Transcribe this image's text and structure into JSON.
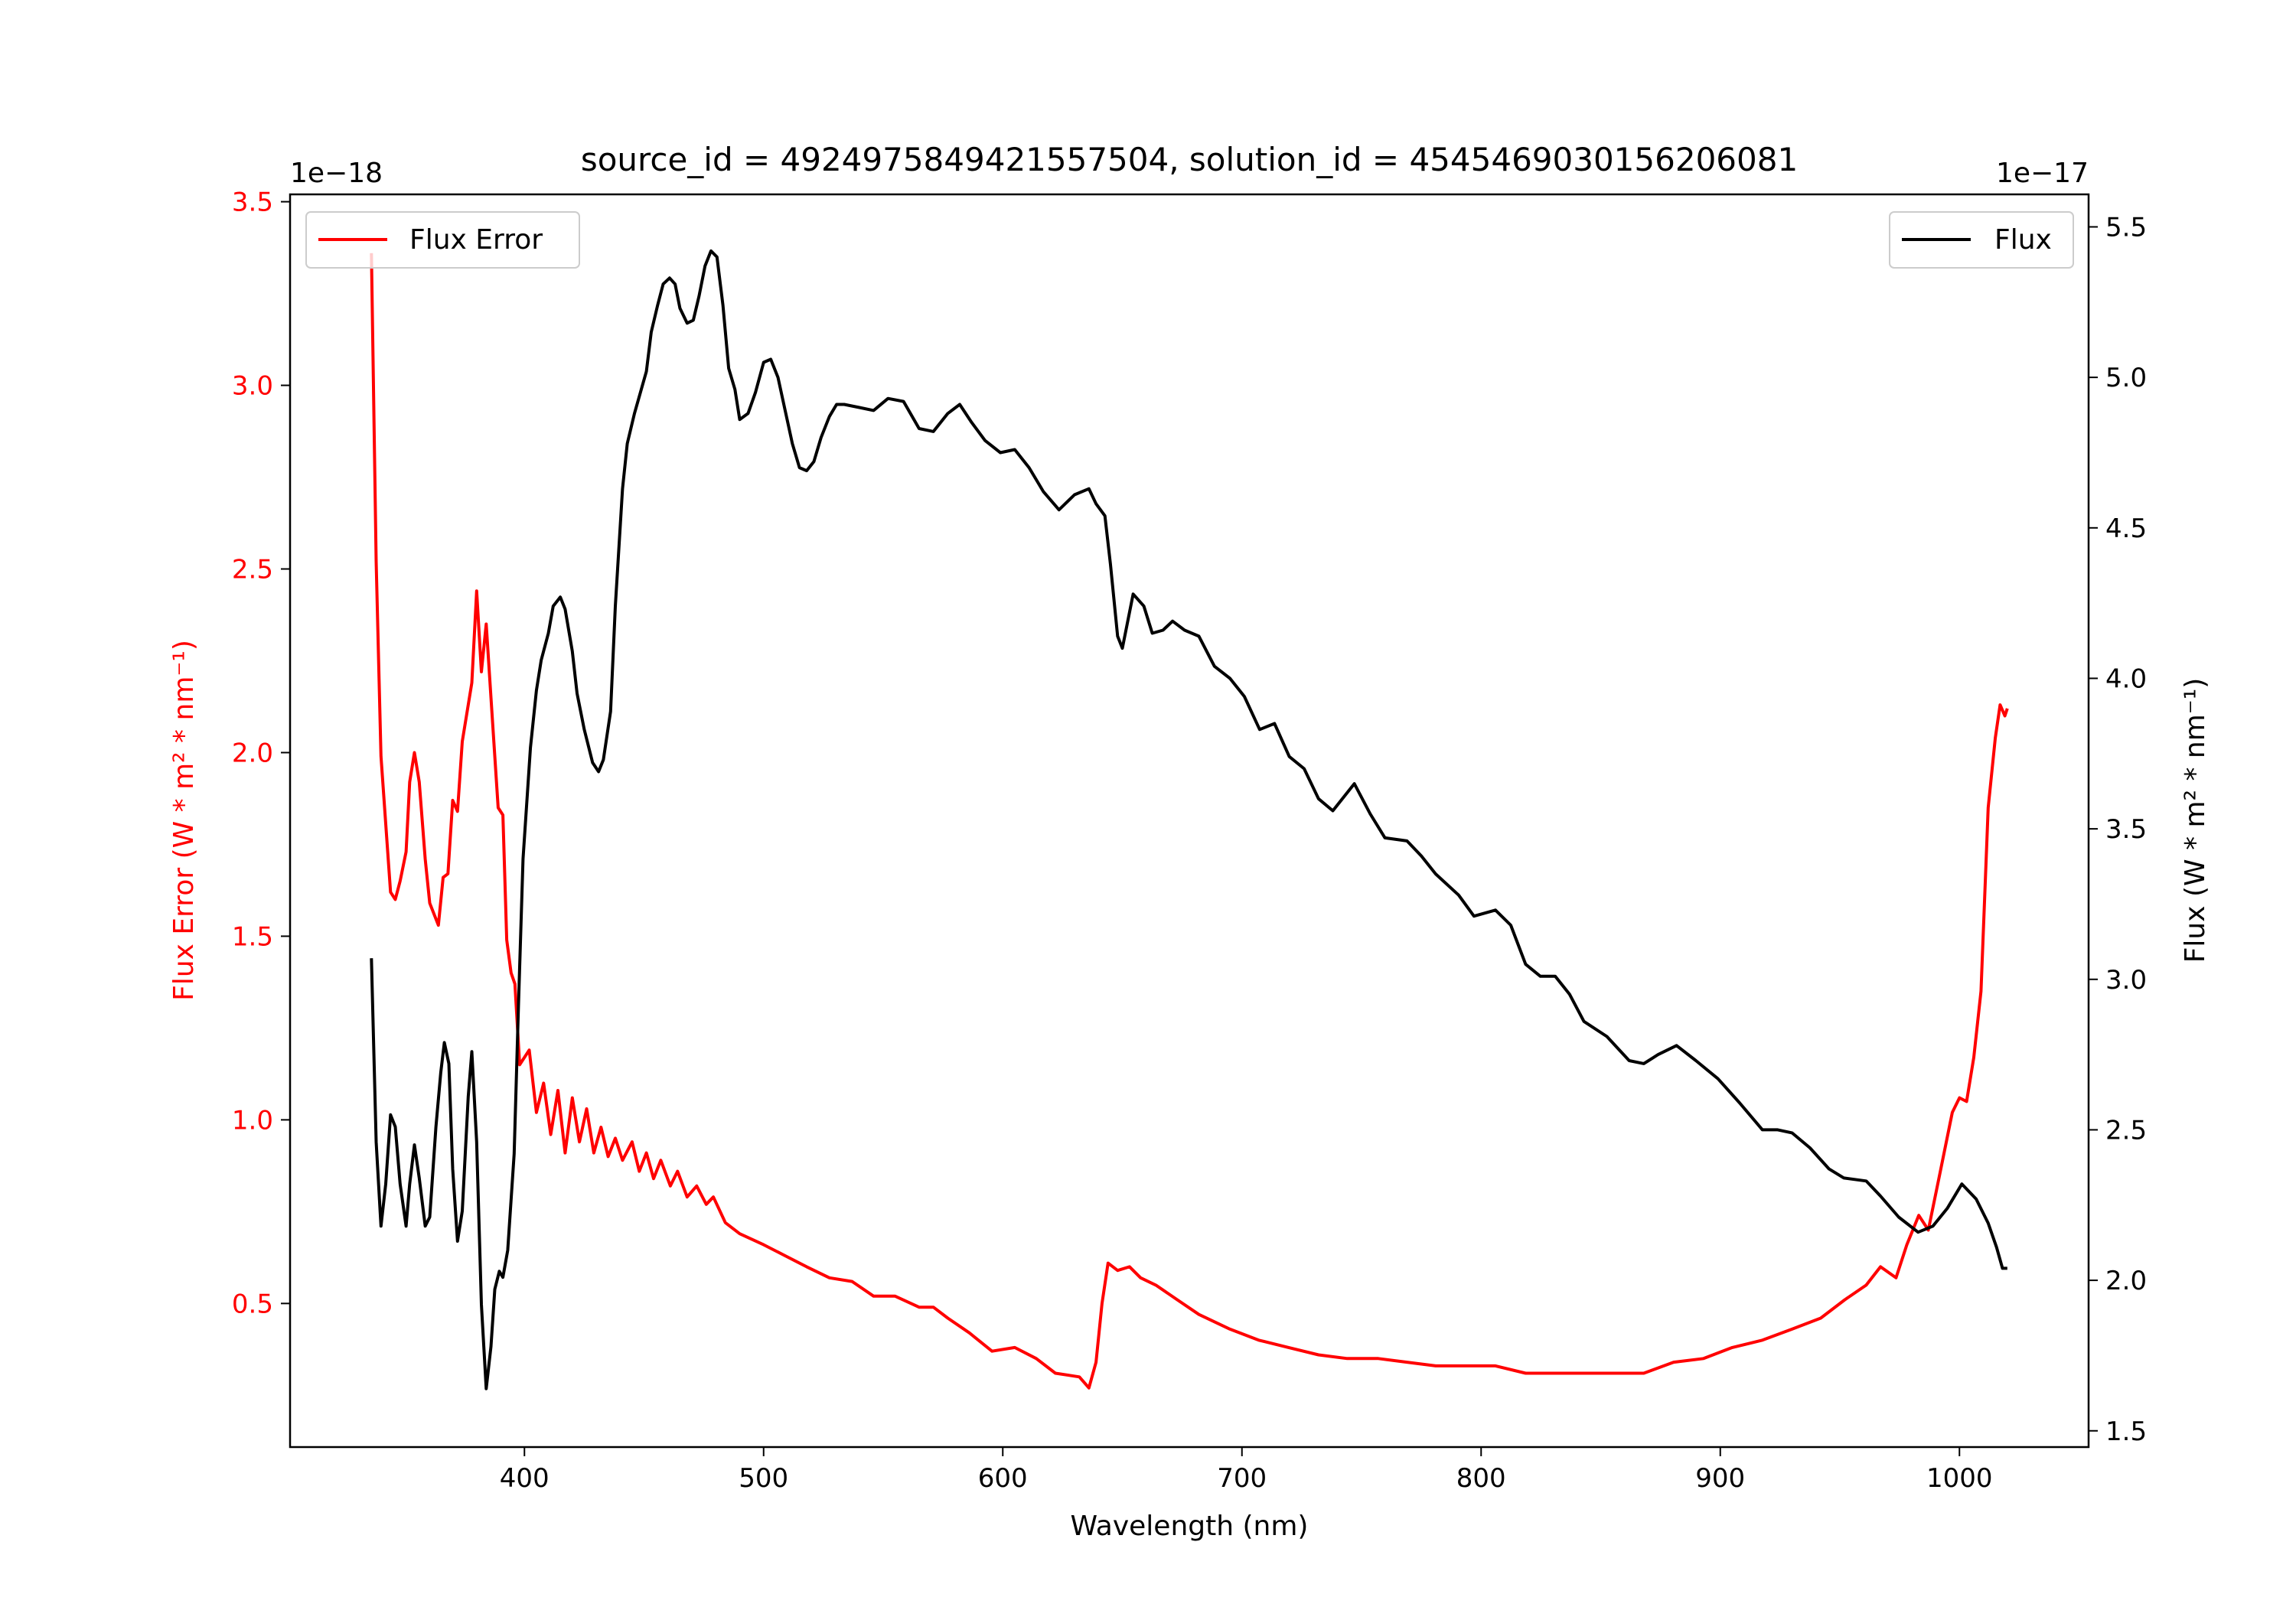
{
  "chart_data": {
    "type": "line",
    "title": "source_id = 4924975849421557504, solution_id = 4545469030156206081",
    "xlabel": "Wavelength (nm)",
    "ylabel_left": "Flux Error (W * m² * nm⁻¹)",
    "ylabel_right": "Flux (W * m² * nm⁻¹)",
    "offset_left": "1e−18",
    "offset_right": "1e−17",
    "xlim": [
      302,
      1054
    ],
    "ylim_left": [
      0.109,
      3.52
    ],
    "ylim_right": [
      1.446,
      5.608
    ],
    "xticks": [
      400,
      500,
      600,
      700,
      800,
      900,
      1000
    ],
    "xtick_labels": [
      "400",
      "500",
      "600",
      "700",
      "800",
      "900",
      "1000"
    ],
    "yticks_left": [
      0.5,
      1.0,
      1.5,
      2.0,
      2.5,
      3.0,
      3.5
    ],
    "ytick_labels_left": [
      "0.5",
      "1.0",
      "1.5",
      "2.0",
      "2.5",
      "3.0",
      "3.5"
    ],
    "yticks_right": [
      1.5,
      2.0,
      2.5,
      3.0,
      3.5,
      4.0,
      4.5,
      5.0,
      5.5
    ],
    "ytick_labels_right": [
      "1.5",
      "2.0",
      "2.5",
      "3.0",
      "3.5",
      "4.0",
      "4.5",
      "5.0",
      "5.5"
    ],
    "grid": false,
    "colors": {
      "flux_error": "#ff0000",
      "flux": "#000000",
      "left_axis_text": "#ff0000"
    },
    "series": [
      {
        "name": "Flux Error",
        "axis": "left",
        "legend_position": "upper-left",
        "x": [
          336,
          338,
          340,
          342.6,
          344,
          346,
          348,
          350.5,
          352,
          354,
          356,
          358.5,
          360.4,
          364,
          366,
          368,
          370,
          372,
          374,
          378,
          380,
          382,
          384,
          386,
          389,
          391,
          392.6,
          394.4,
          396,
          398,
          402,
          405,
          408,
          411,
          414,
          417,
          420,
          423,
          426,
          429,
          432,
          435,
          438,
          441,
          445,
          448,
          451,
          454,
          457,
          461,
          464,
          468,
          472,
          476,
          479,
          484,
          490,
          500,
          509,
          518,
          527.5,
          537,
          546,
          555,
          565,
          571,
          577,
          586,
          595.5,
          605,
          614,
          622,
          632,
          636,
          639,
          641.5,
          644,
          648,
          653,
          657.6,
          664,
          673,
          682,
          695,
          707,
          719.5,
          732,
          744,
          757,
          769,
          781,
          794,
          806,
          818.6,
          831,
          843,
          856,
          868,
          880.5,
          893,
          905,
          917.6,
          930,
          942,
          952,
          961,
          967,
          973.5,
          978,
          983,
          987,
          992,
          997,
          1000,
          1003,
          1006,
          1009,
          1012,
          1015,
          1017,
          1019,
          1020
        ],
        "y": [
          3.36,
          2.52,
          1.99,
          1.75,
          1.62,
          1.6,
          1.65,
          1.73,
          1.92,
          2.0,
          1.92,
          1.71,
          1.59,
          1.53,
          1.66,
          1.67,
          1.87,
          1.84,
          2.03,
          2.19,
          2.44,
          2.22,
          2.35,
          2.15,
          1.85,
          1.83,
          1.49,
          1.4,
          1.37,
          1.15,
          1.19,
          1.02,
          1.1,
          0.96,
          1.08,
          0.91,
          1.06,
          0.94,
          1.03,
          0.91,
          0.98,
          0.9,
          0.95,
          0.89,
          0.94,
          0.86,
          0.91,
          0.84,
          0.89,
          0.82,
          0.86,
          0.79,
          0.82,
          0.77,
          0.79,
          0.72,
          0.69,
          0.66,
          0.63,
          0.6,
          0.57,
          0.56,
          0.52,
          0.52,
          0.49,
          0.49,
          0.46,
          0.42,
          0.37,
          0.38,
          0.35,
          0.31,
          0.3,
          0.27,
          0.34,
          0.5,
          0.61,
          0.59,
          0.6,
          0.57,
          0.55,
          0.51,
          0.47,
          0.43,
          0.4,
          0.38,
          0.36,
          0.35,
          0.35,
          0.34,
          0.33,
          0.33,
          0.33,
          0.31,
          0.31,
          0.31,
          0.31,
          0.31,
          0.34,
          0.35,
          0.38,
          0.4,
          0.43,
          0.46,
          0.51,
          0.55,
          0.6,
          0.57,
          0.66,
          0.74,
          0.7,
          0.86,
          1.02,
          1.06,
          1.05,
          1.17,
          1.35,
          1.85,
          2.04,
          2.13,
          2.1,
          2.12
        ]
      },
      {
        "name": "Flux",
        "axis": "right",
        "legend_position": "upper-right",
        "x": [
          336,
          338,
          340,
          342,
          344,
          346,
          348,
          350.5,
          352,
          354,
          356,
          358.5,
          360.4,
          363,
          365,
          366.5,
          368.4,
          370,
          372,
          374,
          376.5,
          378,
          380,
          382,
          384,
          386,
          387.6,
          389.5,
          391,
          393,
          395.7,
          397.5,
          399.4,
          402.5,
          405,
          407,
          410,
          412,
          415,
          417,
          420,
          422,
          425,
          428.5,
          431,
          433,
          436,
          438,
          441,
          443,
          446,
          448.5,
          451,
          453,
          455.7,
          458,
          460.7,
          463,
          465,
          468,
          470.6,
          473,
          475.5,
          478,
          480.5,
          483,
          485.4,
          488,
          490,
          493.5,
          496.6,
          500,
          503,
          506,
          509,
          512,
          515,
          518,
          521,
          524,
          527.5,
          530.5,
          533.7,
          540,
          546,
          552,
          558.5,
          565,
          571,
          577,
          582,
          587,
          592.6,
          599,
          605,
          611,
          617,
          623.5,
          630,
          636,
          639,
          642.7,
          645,
          648,
          650,
          654.5,
          659,
          662.5,
          667,
          671,
          676,
          682,
          688.5,
          695,
          701,
          707.4,
          713.6,
          719.8,
          726,
          732,
          738,
          747,
          753.6,
          759.8,
          769,
          775,
          781,
          790.6,
          797,
          806,
          812.4,
          818.6,
          824.8,
          831,
          837,
          843,
          852.6,
          861.9,
          868,
          874,
          881.7,
          889.8,
          899,
          908,
          917.6,
          924,
          930,
          937.5,
          945.5,
          951.7,
          961,
          967,
          974.6,
          982.7,
          988.9,
          995,
          1001,
          1007,
          1012,
          1015.5,
          1018,
          1020
        ],
        "y": [
          3.07,
          2.46,
          2.18,
          2.32,
          2.55,
          2.51,
          2.32,
          2.18,
          2.32,
          2.45,
          2.34,
          2.18,
          2.21,
          2.51,
          2.69,
          2.79,
          2.72,
          2.37,
          2.13,
          2.23,
          2.61,
          2.76,
          2.46,
          1.92,
          1.64,
          1.78,
          1.97,
          2.03,
          2.01,
          2.1,
          2.42,
          2.91,
          3.4,
          3.77,
          3.96,
          4.06,
          4.15,
          4.24,
          4.27,
          4.23,
          4.09,
          3.95,
          3.83,
          3.72,
          3.69,
          3.73,
          3.89,
          4.24,
          4.63,
          4.78,
          4.88,
          4.95,
          5.02,
          5.15,
          5.24,
          5.31,
          5.33,
          5.31,
          5.23,
          5.18,
          5.19,
          5.27,
          5.37,
          5.42,
          5.4,
          5.24,
          5.03,
          4.96,
          4.86,
          4.88,
          4.95,
          5.05,
          5.06,
          5.0,
          4.89,
          4.78,
          4.7,
          4.69,
          4.72,
          4.8,
          4.87,
          4.91,
          4.91,
          4.9,
          4.89,
          4.93,
          4.92,
          4.83,
          4.82,
          4.88,
          4.91,
          4.85,
          4.79,
          4.75,
          4.76,
          4.7,
          4.62,
          4.56,
          4.61,
          4.63,
          4.58,
          4.54,
          4.38,
          4.14,
          4.1,
          4.28,
          4.24,
          4.15,
          4.16,
          4.19,
          4.16,
          4.14,
          4.04,
          4.0,
          3.94,
          3.83,
          3.85,
          3.74,
          3.7,
          3.6,
          3.56,
          3.65,
          3.55,
          3.47,
          3.46,
          3.41,
          3.35,
          3.28,
          3.21,
          3.23,
          3.18,
          3.05,
          3.01,
          3.01,
          2.95,
          2.86,
          2.81,
          2.73,
          2.72,
          2.75,
          2.78,
          2.73,
          2.67,
          2.59,
          2.5,
          2.5,
          2.49,
          2.44,
          2.37,
          2.34,
          2.33,
          2.28,
          2.21,
          2.16,
          2.18,
          2.24,
          2.32,
          2.27,
          2.19,
          2.11,
          2.04,
          2.04
        ]
      }
    ]
  }
}
